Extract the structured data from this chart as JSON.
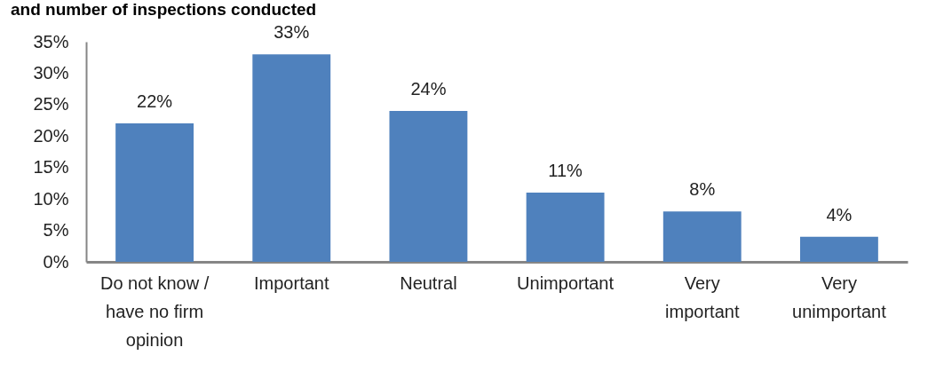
{
  "chart_data": {
    "type": "bar",
    "title": "and number of inspections conducted",
    "categories": [
      "Do not know / have no firm opinion",
      "Important",
      "Neutral",
      "Unimportant",
      "Very important",
      "Very unimportant"
    ],
    "values": [
      22,
      33,
      24,
      11,
      8,
      4
    ],
    "value_labels": [
      "22%",
      "33%",
      "24%",
      "11%",
      "8%",
      "4%"
    ],
    "color": "#4f81bd",
    "ylim": [
      0,
      35
    ],
    "yticks": [
      {
        "value": 0,
        "label": "0%"
      },
      {
        "value": 5,
        "label": "5%"
      },
      {
        "value": 10,
        "label": "10%"
      },
      {
        "value": 15,
        "label": "15%"
      },
      {
        "value": 20,
        "label": "20%"
      },
      {
        "value": 25,
        "label": "25%"
      },
      {
        "value": 30,
        "label": "30%"
      },
      {
        "value": 35,
        "label": "35%"
      }
    ]
  }
}
